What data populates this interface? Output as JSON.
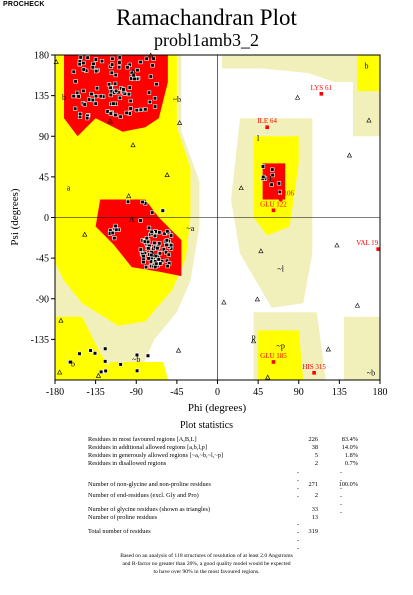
{
  "brand": "PROCHECK",
  "chart_data": {
    "type": "scatter",
    "title": "Ramachandran Plot",
    "subtitle": "probl1amb3_2",
    "xlabel": "Phi (degrees)",
    "ylabel": "Psi (degrees)",
    "xlim": [
      -180,
      180
    ],
    "ylim": [
      -180,
      180
    ],
    "x_ticks": [
      "-180",
      "-135",
      "-90",
      "-45",
      "0",
      "45",
      "90",
      "135",
      "180"
    ],
    "y_ticks": [
      "180",
      "135",
      "90",
      "45",
      "0",
      "-45",
      "-90",
      "-135"
    ],
    "region_labels": [
      "b",
      "b",
      "~b",
      "~b",
      "a",
      "A",
      "~a",
      "L",
      "l",
      "~l",
      "p",
      "~p",
      "b",
      "~b"
    ],
    "colors": {
      "most_favoured": "#ff0000",
      "additional_allowed": "#ffff00",
      "generously_allowed": "#f2f0ba",
      "disallowed": "#ffffff",
      "residue_label": "#ff0000"
    },
    "labelled_residues": [
      {
        "name": "LYS 61",
        "phi": 115,
        "psi": 137
      },
      {
        "name": "ILE 64",
        "phi": 55,
        "psi": 100
      },
      {
        "name": "GLU 106",
        "phi": 70,
        "psi": 20
      },
      {
        "name": "GLU 122",
        "phi": 62,
        "psi": 8
      },
      {
        "name": "VAL 19",
        "phi": 178,
        "psi": -35
      },
      {
        "name": "GLU 185",
        "phi": 62,
        "psi": -160
      },
      {
        "name": "HIS 315",
        "phi": 107,
        "psi": -172
      }
    ]
  },
  "stats": {
    "title": "Plot statistics",
    "rows": [
      {
        "label": "Residues in most favoured regions  [A,B,L]",
        "count": "226",
        "pct": "83.4%"
      },
      {
        "label": "Residues in additional allowed regions  [a,b,l,p]",
        "count": "38",
        "pct": "14.0%"
      },
      {
        "label": "Residues in generously allowed regions  [~a,~b,~l,~p]",
        "count": "5",
        "pct": "1.8%"
      },
      {
        "label": "Residues in disallowed regions",
        "count": "2",
        "pct": "0.7%"
      },
      {
        "label": "Number of non-glycine and non-proline residues",
        "count": "271",
        "pct": "100.0%"
      },
      {
        "label": "Number of end-residues (excl. Gly and Pro)",
        "count": "2",
        "pct": ""
      },
      {
        "label": "Number of glycine residues (shown as triangles)",
        "count": "33",
        "pct": ""
      },
      {
        "label": "Number of proline residues",
        "count": "13",
        "pct": ""
      },
      {
        "label": "Total number of residues",
        "count": "319",
        "pct": ""
      }
    ],
    "separator": "----",
    "pct_separator": "------",
    "footnote": [
      "Based on an analysis of 118 structures of resolution of at least 2.0 Angstroms",
      "and R-factor no greater than 20%, a good quality model would be expected",
      "to have over 90% in the most favoured regions."
    ]
  }
}
